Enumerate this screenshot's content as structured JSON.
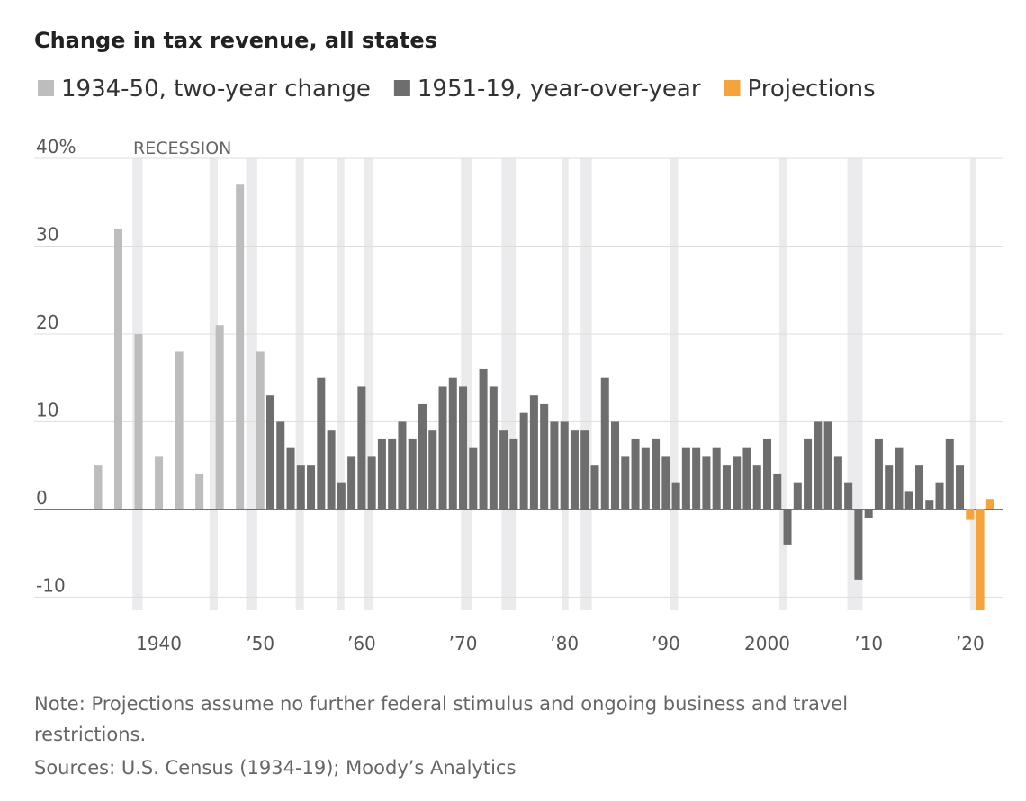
{
  "chart_data": {
    "type": "bar",
    "title": "Change in tax revenue, all states",
    "recession_label": "RECESSION",
    "note": "Note: Projections assume no further federal stimulus and ongoing business and travel restrictions.",
    "sources": "Sources: U.S. Census (1934-19); Moody’s Analytics",
    "xlim": [
      1927.7,
      2023.3
    ],
    "ylim": [
      -11.5,
      40
    ],
    "yticks": [
      {
        "value": 40,
        "label": "40%"
      },
      30,
      20,
      10,
      0,
      -10
    ],
    "xticks": [
      1940,
      {
        "value": 1950,
        "label": "’50"
      },
      {
        "value": 1960,
        "label": "’60"
      },
      {
        "value": 1970,
        "label": "’70"
      },
      {
        "value": 1980,
        "label": "’80"
      },
      {
        "value": 1990,
        "label": "’90"
      },
      2000,
      {
        "value": 2010,
        "label": "’10"
      },
      {
        "value": 2020,
        "label": "’20"
      }
    ],
    "grid": true,
    "recession_color": "#ebebed",
    "recessions": [
      [
        1937.4,
        1938.4
      ],
      [
        1945.0,
        1945.8
      ],
      [
        1948.6,
        1949.7
      ],
      [
        1953.5,
        1954.3
      ],
      [
        1957.6,
        1958.3
      ],
      [
        1960.2,
        1961.1
      ],
      [
        1969.8,
        1970.9
      ],
      [
        1973.8,
        1975.2
      ],
      [
        1979.8,
        1980.4
      ],
      [
        1981.6,
        1982.7
      ],
      [
        1990.4,
        1991.2
      ],
      [
        2001.2,
        2001.9
      ],
      [
        2007.9,
        2009.4
      ],
      [
        2020.0,
        2020.6
      ]
    ],
    "series": [
      {
        "name": "1934-50, two-year change",
        "color": "#bdbdbd",
        "x": [
          1934,
          1936,
          1938,
          1940,
          1942,
          1944,
          1946,
          1948,
          1950
        ],
        "values": [
          5,
          32,
          20,
          6,
          18,
          4,
          21,
          37,
          18
        ]
      },
      {
        "name": "1951-19, year-over-year",
        "color": "#6e6e6e",
        "x": [
          1951,
          1952,
          1953,
          1954,
          1955,
          1956,
          1957,
          1958,
          1959,
          1960,
          1961,
          1962,
          1963,
          1964,
          1965,
          1966,
          1967,
          1968,
          1969,
          1970,
          1971,
          1972,
          1973,
          1974,
          1975,
          1976,
          1977,
          1978,
          1979,
          1980,
          1981,
          1982,
          1983,
          1984,
          1985,
          1986,
          1987,
          1988,
          1989,
          1990,
          1991,
          1992,
          1993,
          1994,
          1995,
          1996,
          1997,
          1998,
          1999,
          2000,
          2001,
          2002,
          2003,
          2004,
          2005,
          2006,
          2007,
          2008,
          2009,
          2010,
          2011,
          2012,
          2013,
          2014,
          2015,
          2016,
          2017,
          2018,
          2019
        ],
        "values": [
          13,
          10,
          7,
          5,
          5,
          15,
          9,
          3,
          6,
          14,
          6,
          8,
          8,
          10,
          8,
          12,
          9,
          14,
          15,
          14,
          7,
          16,
          14,
          9,
          8,
          11,
          13,
          12,
          10,
          10,
          9,
          9,
          5,
          15,
          10,
          6,
          8,
          7,
          8,
          6,
          3,
          7,
          7,
          6,
          7,
          5,
          6,
          7,
          5,
          8,
          4,
          -4,
          3,
          8,
          10,
          10,
          6,
          3,
          -8,
          -1,
          8,
          5,
          7,
          2,
          5,
          1,
          3,
          8,
          5
        ]
      },
      {
        "name": "Projections",
        "color": "#f5a33a",
        "x": [
          2020,
          2021,
          2022
        ],
        "values": [
          -1.2,
          -11.5,
          1.2
        ]
      }
    ]
  }
}
